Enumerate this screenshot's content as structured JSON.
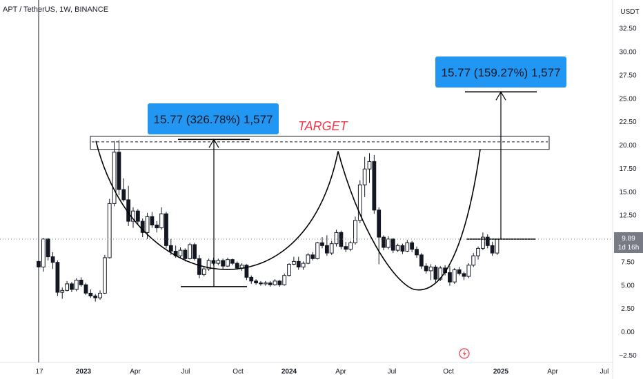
{
  "header": {
    "symbol_line": "APT / TetherUS, 1W, BINANCE"
  },
  "chart_data": {
    "type": "candlestick",
    "symbol": "APT / TetherUS",
    "interval": "1W",
    "exchange": "BINANCE",
    "currency_label": "USDT",
    "y_ticks": [
      "32.50",
      "30.00",
      "27.50",
      "25.00",
      "22.50",
      "20.00",
      "17.50",
      "15.00",
      "12.50",
      "10.00",
      "7.50",
      "5.00",
      "2.50",
      "0.00",
      "−2.50"
    ],
    "x_ticks": [
      "17",
      "2023",
      "Apr",
      "Jul",
      "Oct",
      "2024",
      "Apr",
      "Jul",
      "Oct",
      "2025",
      "Apr",
      "Jul"
    ],
    "ylim": [
      -2.5,
      32.5
    ],
    "price_label": {
      "value": "9.89",
      "countdown": "1d 16h"
    },
    "target_label": "TARGET",
    "target_zone": [
      19.5,
      20.9
    ],
    "target_line": 20.3,
    "neckline_level": 9.89,
    "cup1_bottom": 4.8,
    "measure_callouts": [
      {
        "text": "15.77 (326.78%) 1,577",
        "from": 4.8,
        "to": 20.57
      },
      {
        "text": "15.77 (159.27%) 1,577",
        "from": 9.89,
        "to": 25.66
      }
    ],
    "candles": [
      [
        7.5,
        8.2,
        1.0,
        6.9
      ],
      [
        6.9,
        10.0,
        6.4,
        9.9
      ],
      [
        9.9,
        10.0,
        7.6,
        8.0
      ],
      [
        8.0,
        8.5,
        6.7,
        7.4
      ],
      [
        7.4,
        7.6,
        3.8,
        4.2
      ],
      [
        4.2,
        4.7,
        3.5,
        4.4
      ],
      [
        4.4,
        5.4,
        4.3,
        5.1
      ],
      [
        5.1,
        5.3,
        4.2,
        4.5
      ],
      [
        4.5,
        5.7,
        4.3,
        5.5
      ],
      [
        5.5,
        5.8,
        4.8,
        5.0
      ],
      [
        5.0,
        5.2,
        3.9,
        4.1
      ],
      [
        4.1,
        4.5,
        3.6,
        3.8
      ],
      [
        3.8,
        4.0,
        3.2,
        3.6
      ],
      [
        3.6,
        4.4,
        3.4,
        4.1
      ],
      [
        4.1,
        8.2,
        4.0,
        7.9
      ],
      [
        7.9,
        14.2,
        7.8,
        13.7
      ],
      [
        13.7,
        20.4,
        13.4,
        19.2
      ],
      [
        19.2,
        20.5,
        14.6,
        15.2
      ],
      [
        15.2,
        16.4,
        13.9,
        14.1
      ],
      [
        14.1,
        15.6,
        11.3,
        11.8
      ],
      [
        11.8,
        13.3,
        11.1,
        12.9
      ],
      [
        12.9,
        13.1,
        11.5,
        11.8
      ],
      [
        11.8,
        12.1,
        10.1,
        10.6
      ],
      [
        10.6,
        12.7,
        9.9,
        12.3
      ],
      [
        12.3,
        12.8,
        11.1,
        11.4
      ],
      [
        11.4,
        11.8,
        10.6,
        11.1
      ],
      [
        11.1,
        13.3,
        10.9,
        12.6
      ],
      [
        12.6,
        12.8,
        8.9,
        9.2
      ],
      [
        9.2,
        9.9,
        8.2,
        8.6
      ],
      [
        8.6,
        9.2,
        7.9,
        8.1
      ],
      [
        8.1,
        9.0,
        7.8,
        8.7
      ],
      [
        8.7,
        8.9,
        7.5,
        7.8
      ],
      [
        7.8,
        9.5,
        7.7,
        9.3
      ],
      [
        9.3,
        9.5,
        7.6,
        7.8
      ],
      [
        7.8,
        8.2,
        5.7,
        6.1
      ],
      [
        6.1,
        6.9,
        5.9,
        6.7
      ],
      [
        6.7,
        7.8,
        6.5,
        7.6
      ],
      [
        7.6,
        7.9,
        7.1,
        7.3
      ],
      [
        7.3,
        7.8,
        7.1,
        7.6
      ],
      [
        7.6,
        7.8,
        6.7,
        7.0
      ],
      [
        7.0,
        7.9,
        6.9,
        7.7
      ],
      [
        7.7,
        7.8,
        7.1,
        7.3
      ],
      [
        7.3,
        7.5,
        6.6,
        6.8
      ],
      [
        6.8,
        7.3,
        6.5,
        7.1
      ],
      [
        7.1,
        7.2,
        5.5,
        5.8
      ],
      [
        5.8,
        6.0,
        5.1,
        5.4
      ],
      [
        5.4,
        5.6,
        5.0,
        5.2
      ],
      [
        5.2,
        5.4,
        4.9,
        5.1
      ],
      [
        5.1,
        5.4,
        4.9,
        5.2
      ],
      [
        5.2,
        5.4,
        4.8,
        5.0
      ],
      [
        5.0,
        5.6,
        4.9,
        5.4
      ],
      [
        5.4,
        5.5,
        4.8,
        5.0
      ],
      [
        5.0,
        6.2,
        4.9,
        6.0
      ],
      [
        6.0,
        7.3,
        5.9,
        7.2
      ],
      [
        7.2,
        8.0,
        7.1,
        7.5
      ],
      [
        7.5,
        8.0,
        6.6,
        6.9
      ],
      [
        6.9,
        7.5,
        6.6,
        7.3
      ],
      [
        7.3,
        8.4,
        7.2,
        8.2
      ],
      [
        8.2,
        8.5,
        7.6,
        7.8
      ],
      [
        7.8,
        9.6,
        7.7,
        9.5
      ],
      [
        9.5,
        10.1,
        8.9,
        9.2
      ],
      [
        9.2,
        10.3,
        8.1,
        8.4
      ],
      [
        8.4,
        9.7,
        8.2,
        9.4
      ],
      [
        9.4,
        10.9,
        9.1,
        10.6
      ],
      [
        10.6,
        10.8,
        8.8,
        9.1
      ],
      [
        9.1,
        9.6,
        8.5,
        8.8
      ],
      [
        8.8,
        9.7,
        8.6,
        9.5
      ],
      [
        9.5,
        12.3,
        9.3,
        11.9
      ],
      [
        11.9,
        16.2,
        11.6,
        15.7
      ],
      [
        15.7,
        18.7,
        14.4,
        17.4
      ],
      [
        17.4,
        19.1,
        15.9,
        18.2
      ],
      [
        18.2,
        18.9,
        12.6,
        13.0
      ],
      [
        13.0,
        13.3,
        7.2,
        10.1
      ],
      [
        10.1,
        10.3,
        8.7,
        9.0
      ],
      [
        9.0,
        10.2,
        8.8,
        9.9
      ],
      [
        9.9,
        10.0,
        8.4,
        8.7
      ],
      [
        8.7,
        9.4,
        8.5,
        9.2
      ],
      [
        9.2,
        9.4,
        8.3,
        8.6
      ],
      [
        8.6,
        9.8,
        8.5,
        9.5
      ],
      [
        9.5,
        9.7,
        8.5,
        8.8
      ],
      [
        8.8,
        9.1,
        7.9,
        8.2
      ],
      [
        8.2,
        8.4,
        6.7,
        7.0
      ],
      [
        7.0,
        7.3,
        6.2,
        6.5
      ],
      [
        6.5,
        7.2,
        5.5,
        6.9
      ],
      [
        6.9,
        7.1,
        5.2,
        5.6
      ],
      [
        5.6,
        7.0,
        5.4,
        6.8
      ],
      [
        6.8,
        7.1,
        6.0,
        6.3
      ],
      [
        6.3,
        7.0,
        4.9,
        5.3
      ],
      [
        5.3,
        6.8,
        5.1,
        6.6
      ],
      [
        6.6,
        6.9,
        6.0,
        6.2
      ],
      [
        6.2,
        6.4,
        5.5,
        5.9
      ],
      [
        5.9,
        7.3,
        5.7,
        7.1
      ],
      [
        7.1,
        8.4,
        6.9,
        8.1
      ],
      [
        8.1,
        9.1,
        7.7,
        8.9
      ],
      [
        8.9,
        10.6,
        8.7,
        10.1
      ],
      [
        10.1,
        10.4,
        8.9,
        9.2
      ],
      [
        9.2,
        9.6,
        8.1,
        8.4
      ],
      [
        8.4,
        9.9,
        8.2,
        9.89
      ]
    ]
  }
}
